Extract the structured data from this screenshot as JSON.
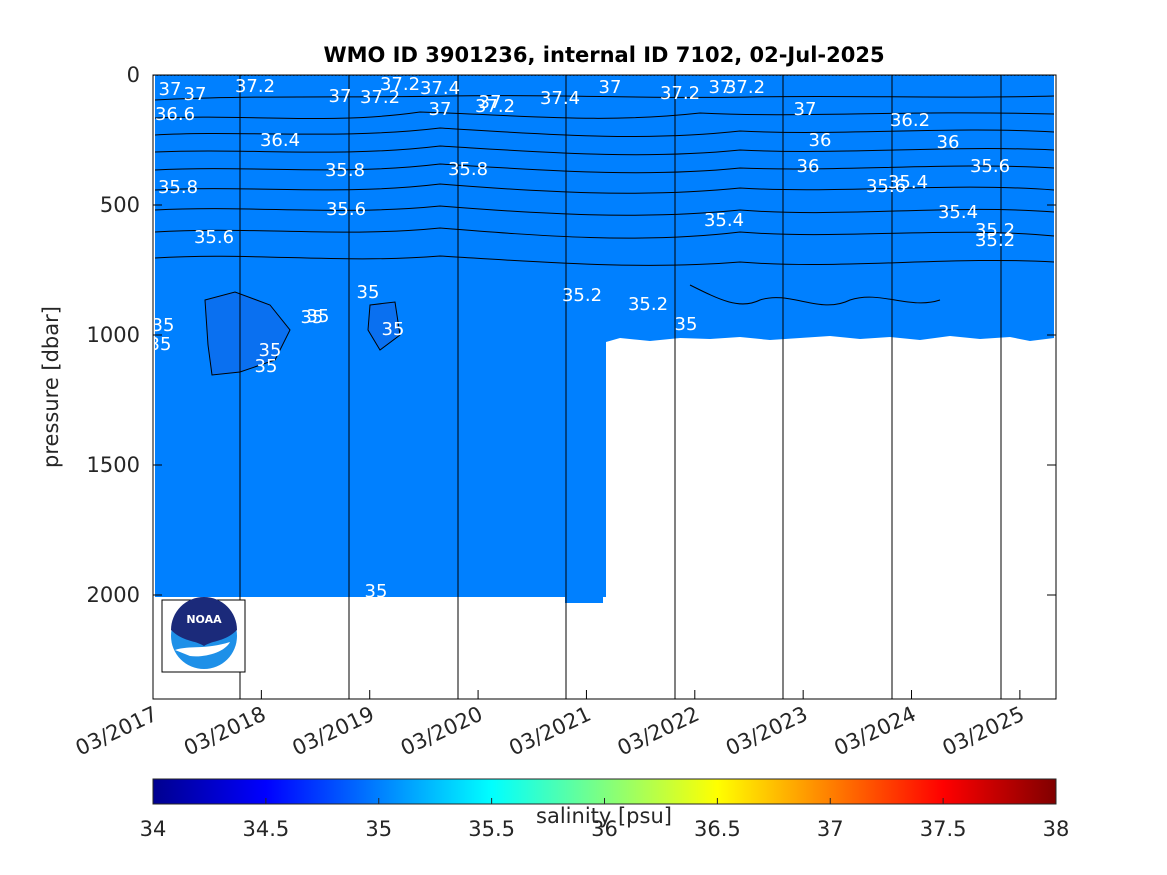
{
  "chart_data": {
    "type": "heatmap",
    "title": "WMO ID 3901236, internal ID 7102, 02-Jul-2025",
    "ylabel": "pressure [dbar]",
    "xlabel": "",
    "x_ticks": [
      "03/2017",
      "03/2018",
      "03/2019",
      "03/2020",
      "03/2021",
      "03/2022",
      "03/2023",
      "03/2024",
      "03/2025"
    ],
    "y_ticks": [
      0,
      500,
      1000,
      1500,
      2000
    ],
    "ylim": [
      2400,
      0
    ],
    "y_reversed": true,
    "xlim": [
      "2017-03",
      "2025-07"
    ],
    "colorbar": {
      "label": "salinity [psu]",
      "colormap": "jet",
      "range": [
        34,
        38
      ],
      "ticks": [
        34,
        34.5,
        35,
        35.5,
        36,
        36.5,
        37,
        37.5,
        38
      ]
    },
    "profile_depth": [
      {
        "period": "2017-03 to 2021-05",
        "max_pressure": 2000
      },
      {
        "period": "2021-05 to 2025-07",
        "max_pressure": 1000
      }
    ],
    "salinity_profile_typical": [
      {
        "pressure": 0,
        "salinity": 37.2
      },
      {
        "pressure": 100,
        "salinity": 37.0
      },
      {
        "pressure": 200,
        "salinity": 36.6
      },
      {
        "pressure": 300,
        "salinity": 36.2
      },
      {
        "pressure": 400,
        "salinity": 35.8
      },
      {
        "pressure": 500,
        "salinity": 35.6
      },
      {
        "pressure": 600,
        "salinity": 35.4
      },
      {
        "pressure": 700,
        "salinity": 35.2
      },
      {
        "pressure": 1000,
        "salinity": 35.0
      },
      {
        "pressure": 2000,
        "salinity": 35.0
      }
    ],
    "year_marker_lines": [
      "2018-01",
      "2019-01",
      "2020-01",
      "2021-01",
      "2022-01",
      "2023-01",
      "2024-01",
      "2025-01"
    ],
    "contour_labels": [
      "37",
      "37",
      "37.2",
      "37.2",
      "37",
      "37.4",
      "37",
      "37",
      "37.2",
      "37.2",
      "37.4",
      "37",
      "37.2",
      "37",
      "37.2",
      "37",
      "36.6",
      "36.4",
      "35.8",
      "35.8",
      "35.8",
      "35.6",
      "35.6",
      "35.4",
      "35.4",
      "35.6",
      "36",
      "36",
      "36.2",
      "36",
      "35.6",
      "35.4",
      "35.2",
      "35.2",
      "35.2",
      "35.2",
      "35",
      "35",
      "35",
      "35",
      "35",
      "35",
      "35",
      "35",
      "35",
      "35"
    ],
    "logo": "NOAA"
  }
}
